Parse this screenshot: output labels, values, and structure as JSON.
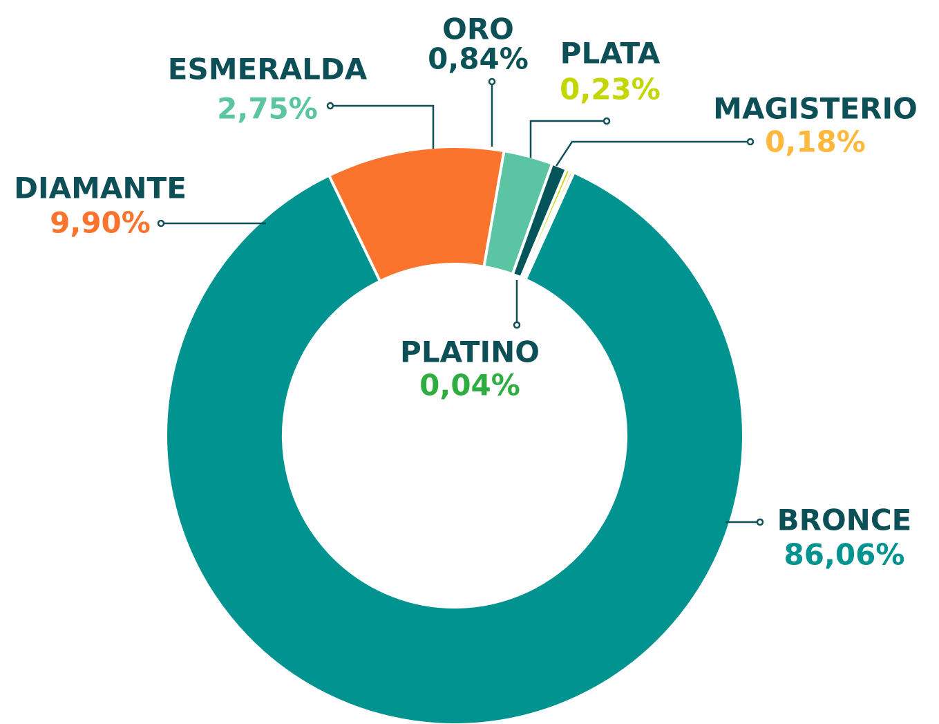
{
  "chart_data": {
    "type": "donut",
    "categories": [
      "BRONCE",
      "DIAMANTE",
      "ESMERALDA",
      "ORO",
      "PLATA",
      "MAGISTERIO",
      "PLATINO"
    ],
    "values": [
      86.06,
      9.9,
      2.75,
      0.84,
      0.23,
      0.18,
      0.04
    ],
    "value_labels": [
      "86,06%",
      "9,90%",
      "2,75%",
      "0,84%",
      "0,23%",
      "0,18%",
      "0,04%"
    ],
    "colors": [
      "#009390",
      "#fb742d",
      "#5bc4a2",
      "#03555a",
      "#c2d600",
      "#fdb83d",
      "#2fad41"
    ]
  }
}
